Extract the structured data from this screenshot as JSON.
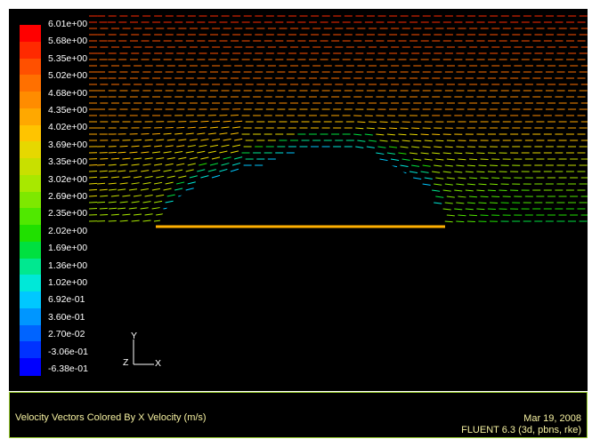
{
  "colorbar": {
    "labels": [
      "6.01e+00",
      "5.68e+00",
      "5.35e+00",
      "5.02e+00",
      "4.68e+00",
      "4.35e+00",
      "4.02e+00",
      "3.69e+00",
      "3.35e+00",
      "3.02e+00",
      "2.69e+00",
      "2.35e+00",
      "2.02e+00",
      "1.69e+00",
      "1.36e+00",
      "1.02e+00",
      "6.92e-01",
      "3.60e-01",
      "2.70e-02",
      "-3.06e-01",
      "-6.38e-01"
    ],
    "colors": [
      "#ff0000",
      "#ff2a00",
      "#ff5000",
      "#ff7000",
      "#ff8c00",
      "#ffa800",
      "#ffc400",
      "#e6d800",
      "#c8e000",
      "#a8e800",
      "#7ee800",
      "#50e800",
      "#20e000",
      "#00e040",
      "#00e890",
      "#00e8d8",
      "#00c8ff",
      "#0096ff",
      "#0064ff",
      "#0032ff",
      "#0000ff"
    ]
  },
  "axes": {
    "y": "Y",
    "x": "X",
    "z": "Z"
  },
  "info": {
    "title": "Velocity Vectors Colored By X Velocity (m/s)",
    "date": "Mar 19, 2008",
    "version": "FLUENT 6.3 (3d, pbns, rke)"
  }
}
